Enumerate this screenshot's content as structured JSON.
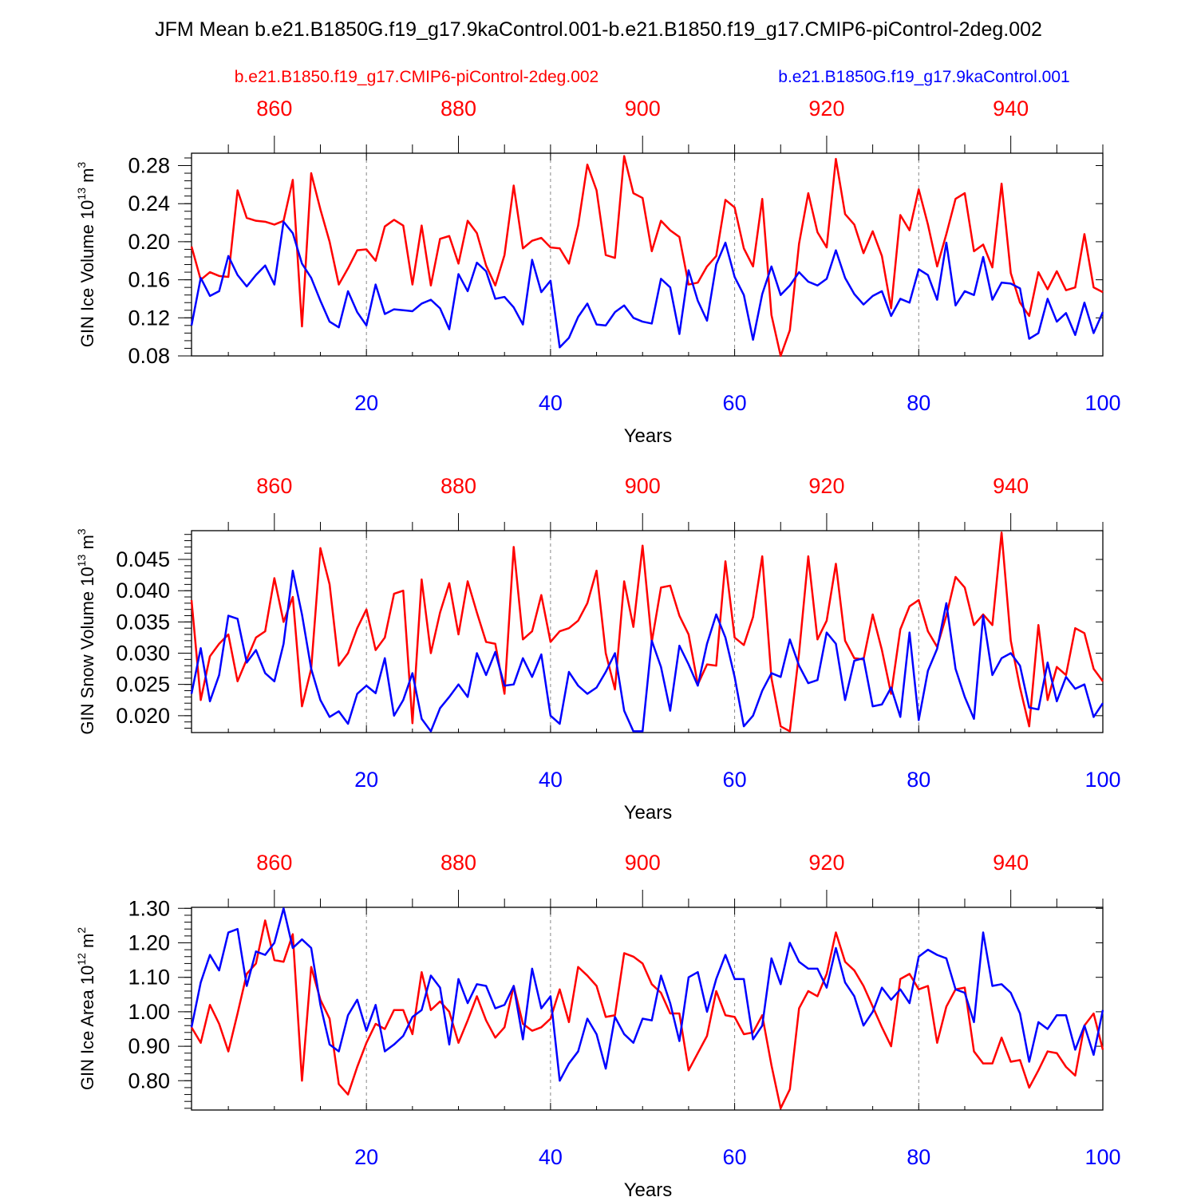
{
  "title": "JFM Mean b.e21.B1850G.f19_g17.9kaControl.001-b.e21.B1850.f19_g17.CMIP6-piControl-2deg.002",
  "legend": {
    "red_label": "b.e21.B1850.f19_g17.CMIP6-piControl-2deg.002",
    "blue_label": "b.e21.B1850G.f19_g17.9kaControl.001"
  },
  "colors": {
    "red": "#ff0000",
    "blue": "#0000ff",
    "axis": "#000000",
    "grid": "#888888"
  },
  "chart_data": [
    {
      "type": "line",
      "ylabel": "GIN Ice Volume 10",
      "ylabel_exp": "13",
      "ylabel_unit": "m",
      "ylabel_unit_exp": "3",
      "xlabel": "Years",
      "xlim": [
        1,
        100
      ],
      "top_xlim": [
        851,
        950
      ],
      "x_ticks": [
        20,
        40,
        60,
        80,
        100
      ],
      "x_tick_labels": [
        "20",
        "40",
        "60",
        "80",
        "100"
      ],
      "top_ticks": [
        860,
        880,
        900,
        920,
        940
      ],
      "top_tick_labels": [
        "860",
        "880",
        "900",
        "920",
        "940"
      ],
      "ylim": [
        0.08,
        0.293
      ],
      "y_ticks": [
        0.08,
        0.12,
        0.16,
        0.2,
        0.24,
        0.28
      ],
      "y_tick_labels": [
        "0.08",
        "0.12",
        "0.16",
        "0.20",
        "0.24",
        "0.28"
      ],
      "y_minor_step": 0.008,
      "series": [
        {
          "name": "b.e21.B1850.f19_g17.CMIP6-piControl-2deg.002",
          "color": "red",
          "values": [
            0.195,
            0.16,
            0.168,
            0.164,
            0.163,
            0.254,
            0.225,
            0.222,
            0.221,
            0.218,
            0.222,
            0.265,
            0.111,
            0.272,
            0.234,
            0.2,
            0.155,
            0.172,
            0.191,
            0.192,
            0.18,
            0.216,
            0.223,
            0.217,
            0.155,
            0.217,
            0.154,
            0.203,
            0.206,
            0.177,
            0.222,
            0.209,
            0.175,
            0.154,
            0.186,
            0.259,
            0.193,
            0.201,
            0.204,
            0.194,
            0.193,
            0.177,
            0.217,
            0.281,
            0.254,
            0.186,
            0.183,
            0.29,
            0.251,
            0.246,
            0.19,
            0.222,
            0.212,
            0.205,
            0.155,
            0.157,
            0.174,
            0.185,
            0.244,
            0.236,
            0.193,
            0.174,
            0.245,
            0.123,
            0.08,
            0.107,
            0.198,
            0.251,
            0.21,
            0.194,
            0.287,
            0.229,
            0.218,
            0.188,
            0.211,
            0.185,
            0.13,
            0.228,
            0.212,
            0.255,
            0.218,
            0.174,
            0.208,
            0.245,
            0.251,
            0.19,
            0.197,
            0.173,
            0.261,
            0.167,
            0.136,
            0.122,
            0.168,
            0.15,
            0.169,
            0.149,
            0.152,
            0.208,
            0.152,
            0.147
          ]
        },
        {
          "name": "b.e21.B1850G.f19_g17.9kaControl.001",
          "color": "blue",
          "values": [
            0.112,
            0.162,
            0.143,
            0.148,
            0.185,
            0.165,
            0.153,
            0.165,
            0.175,
            0.155,
            0.221,
            0.209,
            0.177,
            0.162,
            0.138,
            0.116,
            0.11,
            0.148,
            0.126,
            0.112,
            0.155,
            0.124,
            0.129,
            0.128,
            0.127,
            0.135,
            0.139,
            0.13,
            0.108,
            0.166,
            0.148,
            0.178,
            0.169,
            0.14,
            0.142,
            0.131,
            0.113,
            0.181,
            0.147,
            0.159,
            0.089,
            0.099,
            0.121,
            0.135,
            0.113,
            0.112,
            0.126,
            0.133,
            0.12,
            0.116,
            0.114,
            0.161,
            0.152,
            0.103,
            0.17,
            0.138,
            0.117,
            0.176,
            0.199,
            0.163,
            0.144,
            0.097,
            0.145,
            0.174,
            0.144,
            0.154,
            0.168,
            0.158,
            0.154,
            0.161,
            0.191,
            0.162,
            0.145,
            0.134,
            0.143,
            0.148,
            0.122,
            0.14,
            0.136,
            0.171,
            0.165,
            0.139,
            0.199,
            0.133,
            0.148,
            0.144,
            0.184,
            0.139,
            0.157,
            0.156,
            0.151,
            0.098,
            0.104,
            0.14,
            0.116,
            0.125,
            0.102,
            0.136,
            0.104,
            0.126
          ]
        }
      ]
    },
    {
      "type": "line",
      "ylabel": "GIN Snow Volume 10",
      "ylabel_exp": "13",
      "ylabel_unit": "m",
      "ylabel_unit_exp": "3",
      "xlabel": "Years",
      "xlim": [
        1,
        100
      ],
      "top_xlim": [
        851,
        950
      ],
      "x_ticks": [
        20,
        40,
        60,
        80,
        100
      ],
      "x_tick_labels": [
        "20",
        "40",
        "60",
        "80",
        "100"
      ],
      "top_ticks": [
        860,
        880,
        900,
        920,
        940
      ],
      "top_tick_labels": [
        "860",
        "880",
        "900",
        "920",
        "940"
      ],
      "ylim": [
        0.0173,
        0.0496
      ],
      "y_ticks": [
        0.02,
        0.025,
        0.03,
        0.035,
        0.04,
        0.045
      ],
      "y_tick_labels": [
        "0.020",
        "0.025",
        "0.030",
        "0.035",
        "0.040",
        "0.045"
      ],
      "y_minor_step": 0.001,
      "series": [
        {
          "name": "b.e21.B1850.f19_g17.CMIP6-piControl-2deg.002",
          "color": "red",
          "values": [
            0.0385,
            0.0225,
            0.0295,
            0.0315,
            0.033,
            0.0255,
            0.029,
            0.0325,
            0.0335,
            0.042,
            0.035,
            0.039,
            0.0215,
            0.0275,
            0.0468,
            0.041,
            0.028,
            0.03,
            0.034,
            0.037,
            0.0305,
            0.0325,
            0.0395,
            0.04,
            0.0188,
            0.0418,
            0.03,
            0.0365,
            0.0412,
            0.033,
            0.0415,
            0.0365,
            0.0318,
            0.0315,
            0.0235,
            0.047,
            0.0322,
            0.0335,
            0.0393,
            0.0318,
            0.0335,
            0.034,
            0.0352,
            0.038,
            0.0432,
            0.03,
            0.0242,
            0.0415,
            0.0342,
            0.0472,
            0.0318,
            0.0405,
            0.0408,
            0.036,
            0.033,
            0.025,
            0.0282,
            0.028,
            0.0447,
            0.0325,
            0.0313,
            0.0358,
            0.0455,
            0.026,
            0.0183,
            0.0175,
            0.03,
            0.0455,
            0.0322,
            0.0352,
            0.0443,
            0.032,
            0.0292,
            0.029,
            0.0362,
            0.0305,
            0.0235,
            0.0338,
            0.0375,
            0.0385,
            0.0335,
            0.031,
            0.036,
            0.0422,
            0.0405,
            0.0345,
            0.0362,
            0.0345,
            0.0493,
            0.032,
            0.0245,
            0.0183,
            0.0345,
            0.0225,
            0.0278,
            0.0265,
            0.034,
            0.0332,
            0.0275,
            0.0255
          ]
        },
        {
          "name": "b.e21.B1850G.f19_g17.9kaControl.001",
          "color": "blue",
          "values": [
            0.0235,
            0.0308,
            0.0223,
            0.0265,
            0.036,
            0.0355,
            0.0285,
            0.0305,
            0.0268,
            0.0255,
            0.0315,
            0.0432,
            0.0362,
            0.0275,
            0.0225,
            0.0198,
            0.0207,
            0.0187,
            0.0235,
            0.0248,
            0.0236,
            0.0292,
            0.02,
            0.0225,
            0.0268,
            0.0195,
            0.0175,
            0.0212,
            0.023,
            0.025,
            0.023,
            0.03,
            0.0265,
            0.0302,
            0.0248,
            0.025,
            0.0292,
            0.0262,
            0.0298,
            0.02,
            0.0187,
            0.027,
            0.0248,
            0.0235,
            0.0245,
            0.027,
            0.03,
            0.0208,
            0.0175,
            0.0175,
            0.032,
            0.0278,
            0.0208,
            0.0312,
            0.0282,
            0.0248,
            0.0315,
            0.0362,
            0.0325,
            0.0262,
            0.0183,
            0.02,
            0.024,
            0.0268,
            0.0262,
            0.0322,
            0.028,
            0.0252,
            0.0257,
            0.0333,
            0.0315,
            0.0225,
            0.0288,
            0.0292,
            0.0215,
            0.0218,
            0.0245,
            0.0198,
            0.0333,
            0.0193,
            0.0272,
            0.0307,
            0.038,
            0.0275,
            0.023,
            0.0195,
            0.036,
            0.0265,
            0.0292,
            0.03,
            0.028,
            0.0213,
            0.021,
            0.0285,
            0.0223,
            0.0262,
            0.0243,
            0.025,
            0.0198,
            0.022
          ]
        }
      ]
    },
    {
      "type": "line",
      "ylabel": "GIN Ice Area 10",
      "ylabel_exp": "12",
      "ylabel_unit": "m",
      "ylabel_unit_exp": "2",
      "xlabel": "Years",
      "xlim": [
        1,
        100
      ],
      "top_xlim": [
        851,
        950
      ],
      "x_ticks": [
        20,
        40,
        60,
        80,
        100
      ],
      "x_tick_labels": [
        "20",
        "40",
        "60",
        "80",
        "100"
      ],
      "top_ticks": [
        860,
        880,
        900,
        920,
        940
      ],
      "top_tick_labels": [
        "860",
        "880",
        "900",
        "920",
        "940"
      ],
      "ylim": [
        0.715,
        1.303
      ],
      "y_ticks": [
        0.8,
        0.9,
        1.0,
        1.1,
        1.2,
        1.3
      ],
      "y_tick_labels": [
        "0.80",
        "0.90",
        "1.00",
        "1.10",
        "1.20",
        "1.30"
      ],
      "y_minor_step": 0.02,
      "series": [
        {
          "name": "b.e21.B1850.f19_g17.CMIP6-piControl-2deg.002",
          "color": "red",
          "values": [
            0.955,
            0.91,
            1.02,
            0.965,
            0.885,
            0.995,
            1.11,
            1.14,
            1.265,
            1.15,
            1.145,
            1.225,
            0.8,
            1.13,
            1.035,
            0.98,
            0.79,
            0.76,
            0.84,
            0.91,
            0.965,
            0.95,
            1.005,
            1.005,
            0.935,
            1.115,
            1.005,
            1.03,
            1.0,
            0.91,
            0.975,
            1.045,
            0.975,
            0.925,
            0.955,
            1.075,
            0.965,
            0.945,
            0.955,
            0.98,
            1.065,
            0.97,
            1.13,
            1.105,
            1.075,
            0.985,
            0.99,
            1.17,
            1.16,
            1.14,
            1.08,
            1.055,
            0.995,
            0.995,
            0.83,
            0.88,
            0.93,
            1.06,
            0.99,
            0.985,
            0.935,
            0.94,
            0.99,
            0.845,
            0.72,
            0.775,
            1.01,
            1.06,
            1.045,
            1.11,
            1.23,
            1.145,
            1.12,
            1.075,
            1.015,
            0.955,
            0.9,
            1.095,
            1.11,
            1.065,
            1.075,
            0.91,
            1.015,
            1.065,
            1.07,
            0.885,
            0.85,
            0.85,
            0.925,
            0.855,
            0.86,
            0.78,
            0.83,
            0.885,
            0.88,
            0.84,
            0.815,
            0.96,
            0.995,
            0.89
          ]
        },
        {
          "name": "b.e21.B1850G.f19_g17.9kaControl.001",
          "color": "blue",
          "values": [
            0.955,
            1.085,
            1.165,
            1.12,
            1.23,
            1.24,
            1.075,
            1.175,
            1.165,
            1.2,
            1.3,
            1.185,
            1.21,
            1.185,
            1.02,
            0.905,
            0.885,
            0.99,
            1.035,
            0.945,
            1.02,
            0.885,
            0.905,
            0.93,
            0.985,
            1.005,
            1.105,
            1.07,
            0.905,
            1.095,
            1.025,
            1.08,
            1.075,
            1.01,
            1.02,
            1.075,
            0.92,
            1.125,
            1.01,
            1.045,
            0.8,
            0.85,
            0.885,
            0.98,
            0.935,
            0.835,
            0.985,
            0.935,
            0.91,
            0.98,
            0.975,
            1.105,
            1.025,
            0.915,
            1.1,
            1.115,
            1.0,
            1.095,
            1.165,
            1.095,
            1.095,
            0.92,
            0.96,
            1.155,
            1.08,
            1.2,
            1.145,
            1.125,
            1.125,
            1.07,
            1.185,
            1.085,
            1.045,
            0.96,
            1.0,
            1.07,
            1.035,
            1.065,
            1.025,
            1.16,
            1.18,
            1.165,
            1.155,
            1.065,
            1.055,
            0.97,
            1.23,
            1.075,
            1.08,
            1.055,
            0.995,
            0.855,
            0.97,
            0.95,
            0.99,
            0.99,
            0.89,
            0.96,
            0.875,
            1.005
          ]
        }
      ]
    }
  ]
}
